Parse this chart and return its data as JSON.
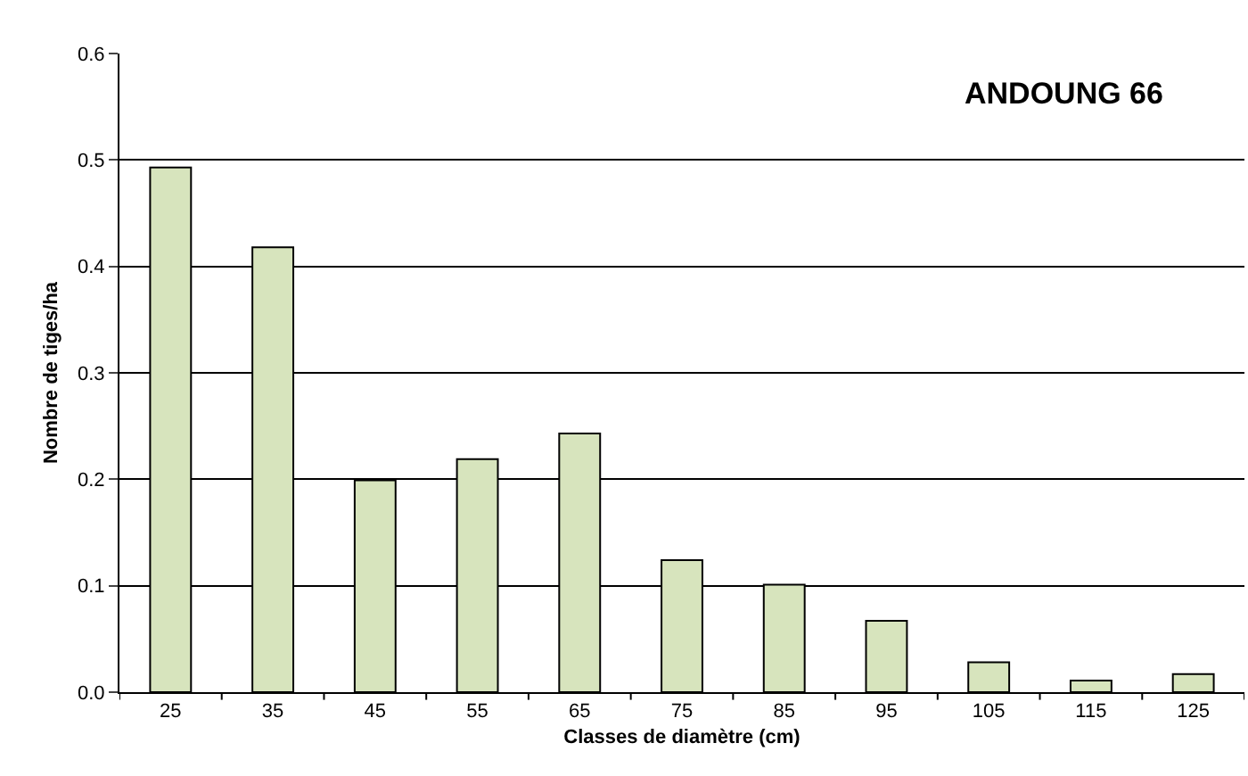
{
  "chart_data": {
    "type": "bar",
    "title": "ANDOUNG 66",
    "xlabel": "Classes de diamètre (cm)",
    "ylabel": "Nombre de tiges/ha",
    "categories": [
      "25",
      "35",
      "45",
      "55",
      "65",
      "75",
      "85",
      "95",
      "105",
      "115",
      "125"
    ],
    "values": [
      0.493,
      0.418,
      0.199,
      0.219,
      0.243,
      0.124,
      0.101,
      0.067,
      0.028,
      0.011,
      0.017
    ],
    "color": "#d7e4bd",
    "ylim": [
      0,
      0.6
    ],
    "yticks": [
      {
        "value": 0,
        "label": "0.0"
      },
      {
        "value": 0.1,
        "label": "0.1"
      },
      {
        "value": 0.2,
        "label": "0.2"
      },
      {
        "value": 0.3,
        "label": "0.3"
      },
      {
        "value": 0.4,
        "label": "0.4"
      },
      {
        "value": 0.5,
        "label": "0.5"
      },
      {
        "value": 0.6,
        "label": "0.6"
      }
    ],
    "grid": "y",
    "legend": false
  }
}
